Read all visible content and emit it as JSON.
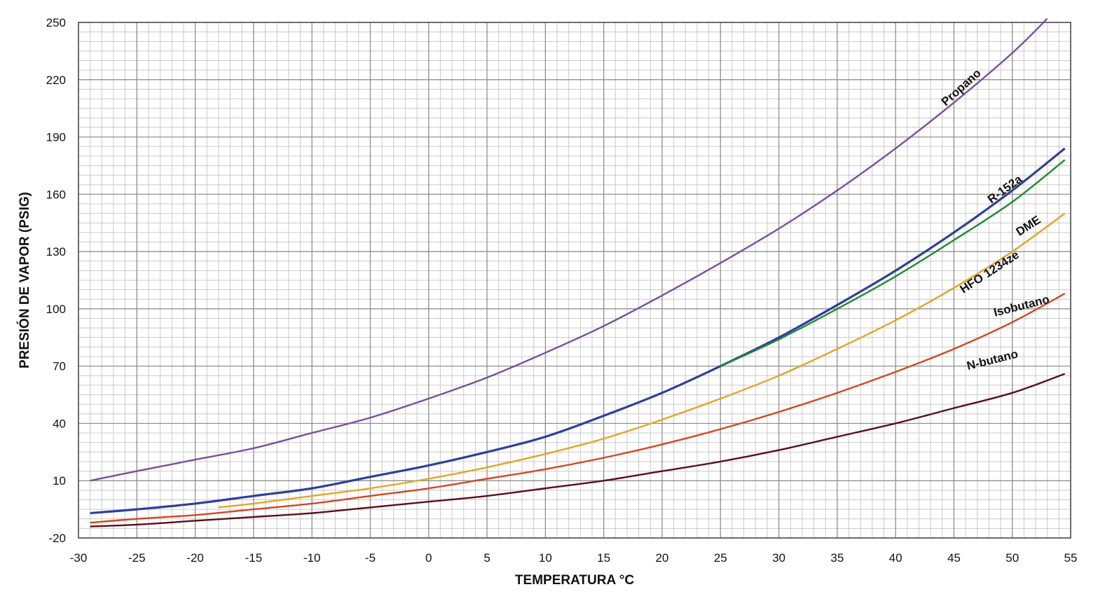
{
  "chart_data": {
    "type": "line",
    "title": "",
    "xlabel": "TEMPERATURA  °C",
    "ylabel": "PRESIÓN DE VAPOR  (PSIG)",
    "xlim": [
      -30,
      55
    ],
    "ylim": [
      -20,
      250
    ],
    "x_ticks": [
      -30,
      -25,
      -20,
      -15,
      -10,
      -5,
      0,
      5,
      10,
      15,
      20,
      25,
      30,
      35,
      40,
      45,
      50,
      55
    ],
    "y_ticks": [
      -20,
      10,
      40,
      70,
      100,
      130,
      160,
      190,
      220,
      250
    ],
    "grid": true,
    "minor_grid": {
      "x_step": 1,
      "y_step": 5
    },
    "series": [
      {
        "name": "Propano",
        "color": "#7a4f9e",
        "x": [
          -29,
          -25,
          -20,
          -15,
          -10,
          -5,
          0,
          5,
          10,
          15,
          20,
          25,
          30,
          35,
          40,
          45,
          50,
          53
        ],
        "y": [
          10,
          15,
          21,
          27,
          35,
          43,
          53,
          64,
          77,
          91,
          107,
          124,
          142,
          162,
          184,
          208,
          234,
          252
        ]
      },
      {
        "name": "R-152a",
        "color": "#2e3f9b",
        "x": [
          -29,
          -25,
          -20,
          -15,
          -10,
          -5,
          0,
          5,
          10,
          15,
          20,
          25,
          30,
          35,
          40,
          45,
          50,
          54.5
        ],
        "y": [
          -7,
          -5,
          -2,
          2,
          6,
          12,
          18,
          25,
          33,
          44,
          56,
          70,
          85,
          102,
          120,
          140,
          162,
          184
        ]
      },
      {
        "name": "DME",
        "color": "#1f8a2e",
        "x": [
          25,
          30,
          35,
          40,
          45,
          50,
          54.5
        ],
        "y": [
          70,
          84,
          100,
          117,
          136,
          156,
          178
        ]
      },
      {
        "name": "HFO 1234ze",
        "color": "#e3a525",
        "x": [
          -18,
          -15,
          -10,
          -5,
          0,
          5,
          10,
          15,
          20,
          25,
          30,
          35,
          40,
          45,
          50,
          54.5
        ],
        "y": [
          -4,
          -2,
          2,
          6,
          11,
          17,
          24,
          32,
          42,
          53,
          65,
          79,
          94,
          111,
          130,
          150
        ]
      },
      {
        "name": "Isobutano",
        "color": "#d64520",
        "x": [
          -29,
          -25,
          -20,
          -15,
          -10,
          -5,
          0,
          5,
          10,
          15,
          20,
          25,
          30,
          35,
          40,
          45,
          50,
          54.5
        ],
        "y": [
          -12,
          -10,
          -8,
          -5,
          -2,
          2,
          6,
          11,
          16,
          22,
          29,
          37,
          46,
          56,
          67,
          79,
          93,
          108
        ]
      },
      {
        "name": "N-butano",
        "color": "#5a0f16",
        "x": [
          -29,
          -25,
          -20,
          -15,
          -10,
          -5,
          0,
          5,
          10,
          15,
          20,
          25,
          30,
          35,
          40,
          45,
          50,
          54.5
        ],
        "y": [
          -14,
          -13,
          -11,
          -9,
          -7,
          -4,
          -1,
          2,
          6,
          10,
          15,
          20,
          26,
          33,
          40,
          48,
          56,
          66
        ]
      }
    ]
  },
  "series_labels": {
    "propano": "Propano",
    "r152a": "R-152a",
    "dme": "DME",
    "hfo": "HFO 1234ze",
    "isobutano": "Isobutano",
    "nbutano": "N-butano"
  }
}
